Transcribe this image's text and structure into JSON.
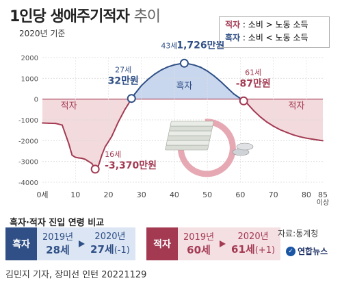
{
  "title": "1인당 생애주기적자",
  "title_suffix": "추이",
  "basis": "2020년 기준",
  "legend": {
    "deficit_key": "적자",
    "deficit_desc": ": 소비 > 노동 소득",
    "surplus_key": "흑자",
    "surplus_desc": ": 소비 < 노동 소득"
  },
  "chart_data": {
    "type": "line",
    "xlim": [
      0,
      85
    ],
    "ylim": [
      -4000,
      2000
    ],
    "x_ticks": [
      "0세",
      "10",
      "20",
      "30",
      "40",
      "50",
      "60",
      "70",
      "80",
      "85"
    ],
    "x_tick_suffix": "이상",
    "y_ticks": [
      "2000",
      "1000",
      "0",
      "-1000",
      "-2000",
      "-3000",
      "-4000"
    ],
    "region_labels": [
      "적자",
      "흑자",
      "적자"
    ],
    "series": [
      {
        "x": [
          0,
          2,
          4,
          6,
          8,
          9,
          10,
          11,
          12,
          13,
          14,
          15,
          16,
          17,
          18,
          19,
          20,
          21,
          22,
          23,
          24,
          25,
          26,
          27,
          28,
          30,
          32,
          34,
          36,
          38,
          40,
          42,
          43,
          44,
          46,
          48,
          50,
          52,
          54,
          56,
          58,
          60,
          61,
          62,
          64,
          66,
          68,
          70,
          72,
          74,
          76,
          78,
          80,
          82,
          84,
          85
        ],
        "y": [
          -1150,
          -1160,
          -1170,
          -1250,
          -2150,
          -2700,
          -2800,
          -2830,
          -2850,
          -2900,
          -3000,
          -3100,
          -3370,
          -3200,
          -2700,
          -2300,
          -2050,
          -1800,
          -1450,
          -1100,
          -800,
          -500,
          -250,
          32,
          250,
          650,
          950,
          1200,
          1400,
          1550,
          1650,
          1710,
          1726,
          1710,
          1640,
          1530,
          1350,
          1120,
          850,
          550,
          250,
          30,
          -87,
          -200,
          -550,
          -850,
          -1100,
          -1300,
          -1470,
          -1600,
          -1720,
          -1810,
          -1880,
          -1930,
          -1980,
          -2000
        ]
      }
    ],
    "annotations": [
      {
        "age": "16세",
        "value": "-3,370만원",
        "x": 16,
        "y": -3370
      },
      {
        "age": "27세",
        "value": "32만원",
        "x": 27,
        "y": 32
      },
      {
        "age": "43세",
        "value": "1,726만원",
        "x": 43,
        "y": 1726
      },
      {
        "age": "61세",
        "value": "-87만원",
        "x": 61,
        "y": -87
      }
    ]
  },
  "comparison": {
    "title": "흑자·적자 진입 연령 비교",
    "surplus": {
      "tag": "흑자",
      "from_year": "2019년",
      "from_age": "28세",
      "to_year": "2020년",
      "to_age": "27세",
      "to_note": "(-1)"
    },
    "deficit": {
      "tag": "적자",
      "from_year": "2019년",
      "from_age": "60세",
      "to_year": "2020년",
      "to_age": "61세",
      "to_note": "(+1)"
    }
  },
  "source": "자료:통계청",
  "logo": "연합뉴스",
  "footer": "김민지 기자, 장미선 인턴  20221129",
  "colors": {
    "surplus": "#2f4f86",
    "deficit": "#a33a52",
    "surplus_fill": "#c9d7ee",
    "deficit_fill": "#f3dadd",
    "line": "#a33a52",
    "line2": "#2f4f86"
  }
}
